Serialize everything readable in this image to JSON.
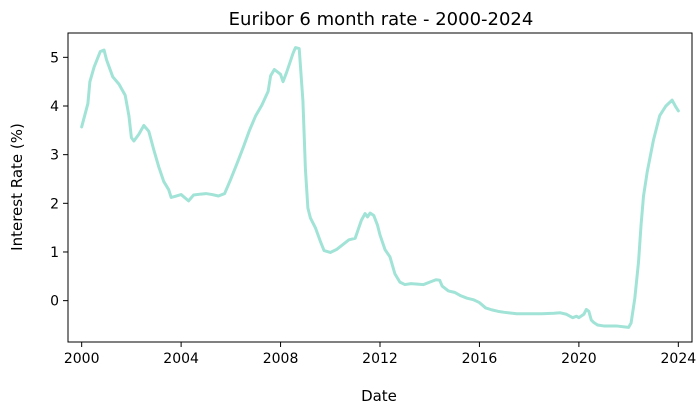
{
  "chart_data": {
    "type": "line",
    "title": "Euribor 6 month rate - 2000-2024",
    "xlabel": "Date",
    "ylabel": "Interest Rate (%)",
    "x_ticks": [
      2000,
      2004,
      2008,
      2012,
      2016,
      2020,
      2024
    ],
    "y_ticks": [
      0,
      1,
      2,
      3,
      4,
      5
    ],
    "xlim": [
      1999.45,
      2024.55
    ],
    "ylim": [
      -0.85,
      5.5
    ],
    "grid": false,
    "legend": "none",
    "series": [
      {
        "color": "#a1e3d6",
        "x": [
          2000.0,
          2000.25,
          2000.33,
          2000.5,
          2000.75,
          2000.9,
          2001.0,
          2001.25,
          2001.5,
          2001.75,
          2001.9,
          2002.0,
          2002.1,
          2002.3,
          2002.5,
          2002.7,
          2002.9,
          2003.1,
          2003.3,
          2003.5,
          2003.6,
          2003.8,
          2004.0,
          2004.3,
          2004.5,
          2004.8,
          2005.0,
          2005.25,
          2005.5,
          2005.75,
          2006.0,
          2006.25,
          2006.5,
          2006.75,
          2007.0,
          2007.25,
          2007.5,
          2007.6,
          2007.75,
          2008.0,
          2008.1,
          2008.25,
          2008.5,
          2008.6,
          2008.75,
          2008.9,
          2009.0,
          2009.1,
          2009.2,
          2009.4,
          2009.6,
          2009.75,
          2010.0,
          2010.25,
          2010.5,
          2010.75,
          2011.0,
          2011.25,
          2011.4,
          2011.5,
          2011.6,
          2011.75,
          2011.9,
          2012.0,
          2012.2,
          2012.4,
          2012.6,
          2012.8,
          2013.0,
          2013.25,
          2013.5,
          2013.75,
          2014.0,
          2014.25,
          2014.4,
          2014.5,
          2014.75,
          2015.0,
          2015.25,
          2015.5,
          2015.75,
          2016.0,
          2016.25,
          2016.5,
          2016.75,
          2017.0,
          2017.5,
          2018.0,
          2018.5,
          2019.0,
          2019.25,
          2019.5,
          2019.75,
          2019.9,
          2020.0,
          2020.2,
          2020.3,
          2020.4,
          2020.5,
          2020.6,
          2020.75,
          2021.0,
          2021.5,
          2022.0,
          2022.1,
          2022.25,
          2022.4,
          2022.5,
          2022.6,
          2022.75,
          2023.0,
          2023.25,
          2023.5,
          2023.75,
          2023.9,
          2024.0
        ],
        "y": [
          3.57,
          4.05,
          4.5,
          4.8,
          5.12,
          5.15,
          4.95,
          4.6,
          4.45,
          4.22,
          3.8,
          3.35,
          3.28,
          3.42,
          3.6,
          3.48,
          3.1,
          2.75,
          2.45,
          2.28,
          2.12,
          2.15,
          2.18,
          2.05,
          2.17,
          2.19,
          2.2,
          2.18,
          2.15,
          2.2,
          2.5,
          2.82,
          3.15,
          3.5,
          3.8,
          4.02,
          4.3,
          4.62,
          4.75,
          4.65,
          4.5,
          4.7,
          5.08,
          5.2,
          5.18,
          4.1,
          2.7,
          1.9,
          1.7,
          1.5,
          1.22,
          1.03,
          0.99,
          1.05,
          1.15,
          1.25,
          1.28,
          1.65,
          1.79,
          1.72,
          1.8,
          1.75,
          1.55,
          1.35,
          1.05,
          0.9,
          0.55,
          0.38,
          0.33,
          0.35,
          0.34,
          0.33,
          0.38,
          0.43,
          0.42,
          0.3,
          0.2,
          0.17,
          0.1,
          0.05,
          0.02,
          -0.04,
          -0.15,
          -0.19,
          -0.22,
          -0.24,
          -0.27,
          -0.27,
          -0.27,
          -0.26,
          -0.25,
          -0.28,
          -0.35,
          -0.32,
          -0.35,
          -0.28,
          -0.18,
          -0.22,
          -0.4,
          -0.45,
          -0.5,
          -0.52,
          -0.52,
          -0.55,
          -0.46,
          0.05,
          0.8,
          1.55,
          2.15,
          2.65,
          3.3,
          3.8,
          4.0,
          4.12,
          3.98,
          3.9
        ]
      }
    ]
  }
}
